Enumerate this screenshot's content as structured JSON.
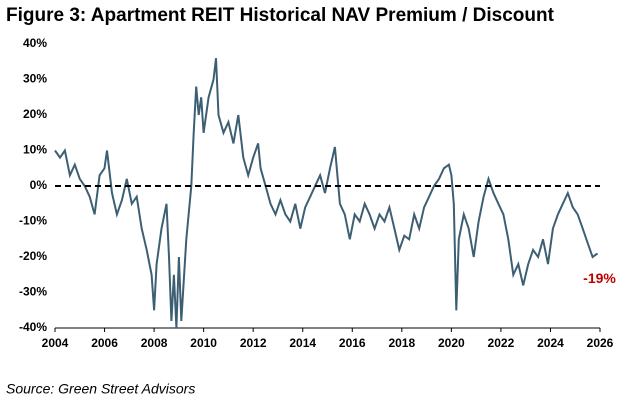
{
  "chart_data": {
    "type": "line",
    "title": "Figure 3: Apartment REIT Historical NAV Premium / Discount",
    "source": "Source: Green Street Advisors",
    "x": [
      2004.0,
      2004.2,
      2004.4,
      2004.6,
      2004.8,
      2005.0,
      2005.2,
      2005.4,
      2005.6,
      2005.8,
      2006.0,
      2006.1,
      2006.3,
      2006.5,
      2006.7,
      2006.9,
      2007.1,
      2007.3,
      2007.5,
      2007.7,
      2007.9,
      2008.0,
      2008.1,
      2008.3,
      2008.5,
      2008.6,
      2008.7,
      2008.8,
      2008.9,
      2009.0,
      2009.1,
      2009.3,
      2009.5,
      2009.6,
      2009.7,
      2009.8,
      2009.9,
      2010.0,
      2010.2,
      2010.4,
      2010.5,
      2010.6,
      2010.8,
      2011.0,
      2011.2,
      2011.4,
      2011.6,
      2011.8,
      2012.0,
      2012.2,
      2012.3,
      2012.5,
      2012.7,
      2012.9,
      2013.1,
      2013.3,
      2013.5,
      2013.7,
      2013.9,
      2014.1,
      2014.3,
      2014.5,
      2014.7,
      2014.9,
      2015.1,
      2015.3,
      2015.5,
      2015.7,
      2015.9,
      2016.1,
      2016.3,
      2016.5,
      2016.7,
      2016.9,
      2017.1,
      2017.3,
      2017.5,
      2017.7,
      2017.9,
      2018.1,
      2018.3,
      2018.5,
      2018.7,
      2018.9,
      2019.1,
      2019.3,
      2019.5,
      2019.7,
      2019.9,
      2020.0,
      2020.1,
      2020.2,
      2020.3,
      2020.5,
      2020.7,
      2020.9,
      2021.1,
      2021.3,
      2021.5,
      2021.7,
      2021.9,
      2022.1,
      2022.3,
      2022.5,
      2022.7,
      2022.9,
      2023.1,
      2023.3,
      2023.5,
      2023.7,
      2023.9,
      2024.1,
      2024.3,
      2024.5,
      2024.7,
      2024.9,
      2025.1,
      2025.3,
      2025.5,
      2025.7,
      2025.9
    ],
    "values": [
      10,
      8,
      10,
      3,
      6,
      2,
      0,
      -3,
      -8,
      3,
      5,
      10,
      -2,
      -8,
      -4,
      2,
      -5,
      -3,
      -12,
      -18,
      -25,
      -35,
      -22,
      -12,
      -5,
      -20,
      -38,
      -25,
      -40,
      -20,
      -38,
      -15,
      0,
      15,
      28,
      20,
      25,
      15,
      25,
      30,
      36,
      20,
      15,
      18,
      12,
      20,
      8,
      3,
      8,
      12,
      5,
      0,
      -5,
      -8,
      -4,
      -8,
      -10,
      -5,
      -12,
      -6,
      -3,
      0,
      3,
      -2,
      5,
      11,
      -5,
      -8,
      -15,
      -8,
      -10,
      -5,
      -8,
      -12,
      -8,
      -10,
      -6,
      -12,
      -18,
      -14,
      -15,
      -8,
      -12,
      -6,
      -3,
      0,
      2,
      5,
      6,
      3,
      -5,
      -35,
      -15,
      -8,
      -12,
      -20,
      -10,
      -3,
      2,
      -2,
      -5,
      -8,
      -15,
      -25,
      -22,
      -28,
      -22,
      -18,
      -20,
      -15,
      -22,
      -12,
      -8,
      -5,
      -2,
      -6,
      -8,
      -12,
      -16,
      -20,
      -19
    ],
    "color": "#3d5f73",
    "xlim": [
      2004,
      2026
    ],
    "xticks": [
      2004,
      2006,
      2008,
      2010,
      2012,
      2014,
      2016,
      2018,
      2020,
      2022,
      2024,
      2026
    ],
    "ylim": [
      -40,
      40
    ],
    "yticks": [
      {
        "value": 40,
        "label": "40%"
      },
      {
        "value": 30,
        "label": "30%"
      },
      {
        "value": 20,
        "label": "20%"
      },
      {
        "value": 10,
        "label": "10%"
      },
      {
        "value": 0,
        "label": "0%"
      },
      {
        "value": -10,
        "label": "-10%"
      },
      {
        "value": -20,
        "label": "-20%"
      },
      {
        "value": -30,
        "label": "-30%"
      },
      {
        "value": -40,
        "label": "-40%"
      }
    ],
    "reference_line": 0,
    "annotations": [
      {
        "x": 2025.9,
        "y": -19,
        "label": "-19%",
        "color": "#c00000"
      }
    ]
  }
}
